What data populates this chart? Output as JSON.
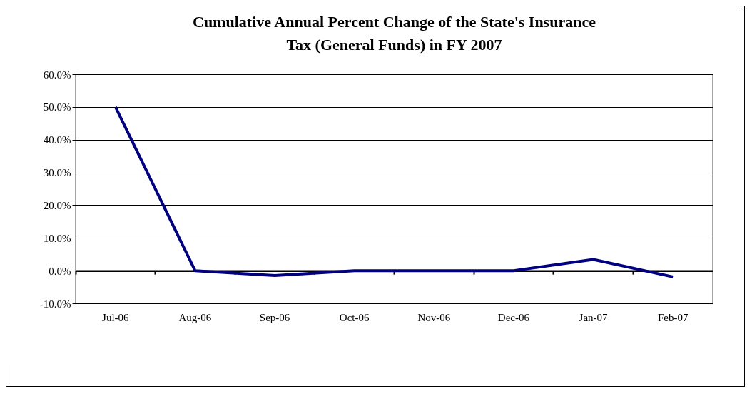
{
  "chart_data": {
    "type": "line",
    "title": "Cumulative Annual Percent Change of the State's Insurance Tax (General Funds) in FY 2007",
    "categories": [
      "Jul-06",
      "Aug-06",
      "Sep-06",
      "Oct-06",
      "Nov-06",
      "Dec-06",
      "Jan-07",
      "Feb-07"
    ],
    "series": [
      {
        "color": "#000080",
        "values": [
          50.0,
          0.0,
          -1.5,
          0.0,
          0.0,
          0.0,
          3.4,
          -1.9
        ]
      }
    ],
    "ylim": [
      -10,
      60
    ],
    "yticks": [
      {
        "value": -10,
        "label": "-10.0%"
      },
      {
        "value": 0,
        "label": "0.0%"
      },
      {
        "value": 10,
        "label": "10.0%"
      },
      {
        "value": 20,
        "label": "20.0%"
      },
      {
        "value": 30,
        "label": "30.0%"
      },
      {
        "value": 40,
        "label": "40.0%"
      },
      {
        "value": 50,
        "label": "50.0%"
      },
      {
        "value": 60,
        "label": "60.0%"
      }
    ],
    "grid": "y",
    "marker": "none",
    "line_style": "solid"
  }
}
